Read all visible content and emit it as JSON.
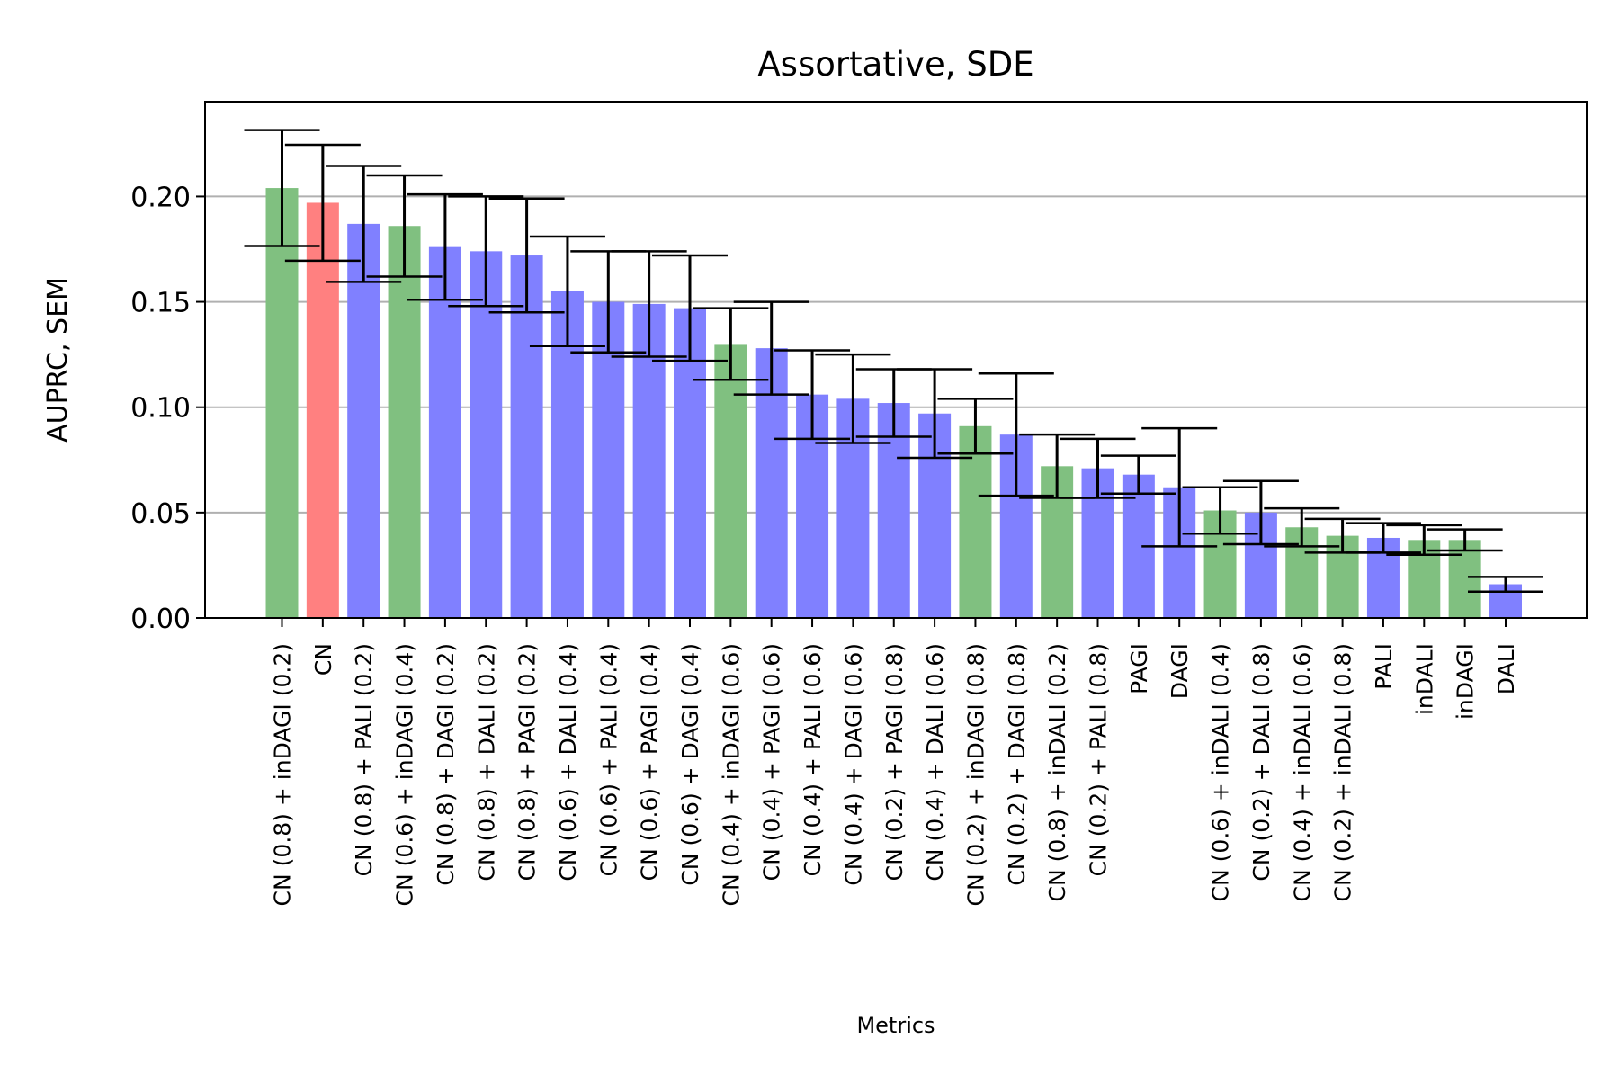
{
  "chart_data": {
    "type": "bar",
    "title": "Assortative, SDE",
    "xlabel": "Metrics",
    "ylabel": "AUPRC, SEM",
    "ylim": [
      0,
      0.245
    ],
    "yticks": [
      "0.00",
      "0.05",
      "0.10",
      "0.15",
      "0.20"
    ],
    "grid": "y",
    "legend": "none",
    "colors": {
      "green": "#80c080",
      "red": "#ff8080",
      "blue": "#8080ff",
      "grid": "#b0b0b0"
    },
    "categories": [
      "CN (0.8) + inDAGI (0.2)",
      "CN",
      "CN (0.8) + PALI (0.2)",
      "CN (0.6) + inDAGI (0.4)",
      "CN (0.8) + DAGI (0.2)",
      "CN (0.8) + DALI (0.2)",
      "CN (0.8) + PAGI (0.2)",
      "CN (0.6) + DALI (0.4)",
      "CN (0.6) + PALI (0.4)",
      "CN (0.6) + PAGI (0.4)",
      "CN (0.6) + DAGI (0.4)",
      "CN (0.4) + inDAGI (0.6)",
      "CN (0.4) + PAGI (0.6)",
      "CN (0.4) + PALI (0.6)",
      "CN (0.4) + DAGI (0.6)",
      "CN (0.2) + PAGI (0.8)",
      "CN (0.4) + DALI (0.6)",
      "CN (0.2) + inDAGI (0.8)",
      "CN (0.2) + DAGI (0.8)",
      "CN (0.8) + inDALI (0.2)",
      "CN (0.2) + PALI (0.8)",
      "PAGI",
      "DAGI",
      "CN (0.6) + inDALI (0.4)",
      "CN (0.2) + DALI (0.8)",
      "CN (0.4) + inDALI (0.6)",
      "CN (0.2) + inDALI (0.8)",
      "PALI",
      "inDALI",
      "inDAGI",
      "DALI"
    ],
    "values": [
      0.204,
      0.197,
      0.187,
      0.186,
      0.176,
      0.174,
      0.172,
      0.155,
      0.15,
      0.149,
      0.147,
      0.13,
      0.128,
      0.106,
      0.104,
      0.102,
      0.097,
      0.091,
      0.087,
      0.072,
      0.071,
      0.068,
      0.062,
      0.051,
      0.05,
      0.043,
      0.039,
      0.038,
      0.037,
      0.037,
      0.016
    ],
    "errors": [
      0.0275,
      0.0275,
      0.0275,
      0.024,
      0.025,
      0.026,
      0.027,
      0.026,
      0.024,
      0.025,
      0.025,
      0.017,
      0.022,
      0.021,
      0.021,
      0.016,
      0.021,
      0.013,
      0.029,
      0.015,
      0.014,
      0.009,
      0.028,
      0.011,
      0.015,
      0.009,
      0.008,
      0.007,
      0.007,
      0.005,
      0.0035
    ],
    "bar_colors": [
      "green",
      "red",
      "blue",
      "green",
      "blue",
      "blue",
      "blue",
      "blue",
      "blue",
      "blue",
      "blue",
      "green",
      "blue",
      "blue",
      "blue",
      "blue",
      "blue",
      "green",
      "blue",
      "green",
      "blue",
      "blue",
      "blue",
      "green",
      "blue",
      "green",
      "green",
      "blue",
      "green",
      "green",
      "blue"
    ]
  }
}
